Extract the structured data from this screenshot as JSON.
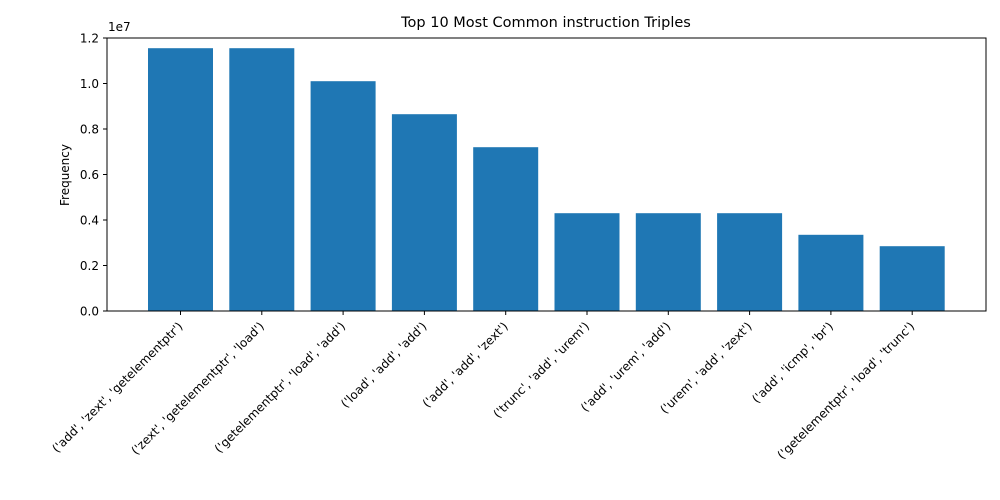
{
  "chart_data": {
    "type": "bar",
    "title": "Top 10 Most Common instruction Triples",
    "xlabel": "",
    "ylabel": "Frequency",
    "y_offset_label": "1e7",
    "ylim": [
      0,
      12000000
    ],
    "yticks": [
      0,
      2000000,
      4000000,
      6000000,
      8000000,
      10000000,
      12000000
    ],
    "ytick_labels": [
      "0.0",
      "0.2",
      "0.4",
      "0.6",
      "0.8",
      "1.0",
      "1.2"
    ],
    "grid": false,
    "bar_color": "#1f77b4",
    "categories": [
      "('add', 'zext', 'getelementptr')",
      "('zext', 'getelementptr', 'load')",
      "('getelementptr', 'load', 'add')",
      "('load', 'add', 'add')",
      "('add', 'add', 'zext')",
      "('trunc', 'add', 'urem')",
      "('add', 'urem', 'add')",
      "('urem', 'add', 'zext')",
      "('add', 'icmp', 'br')",
      "('getelementptr', 'load', 'trunc')"
    ],
    "values": [
      11550000,
      11550000,
      10100000,
      8650000,
      7200000,
      4300000,
      4300000,
      4300000,
      3350000,
      2850000
    ]
  }
}
